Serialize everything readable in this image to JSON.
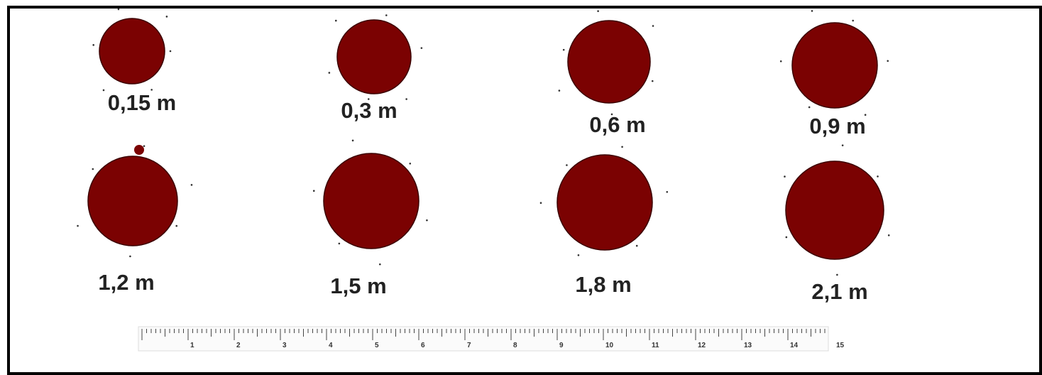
{
  "drops": [
    {
      "label": "0,15 m"
    },
    {
      "label": "0,3 m"
    },
    {
      "label": "0,6 m"
    },
    {
      "label": "0,9 m"
    },
    {
      "label": "1,2 m"
    },
    {
      "label": "1,5 m"
    },
    {
      "label": "1,8 m"
    },
    {
      "label": "2,1 m"
    }
  ],
  "ruler": {
    "labels": [
      "1",
      "2",
      "3",
      "4",
      "5",
      "6",
      "7",
      "8",
      "9",
      "10",
      "11",
      "12",
      "13",
      "14",
      "15"
    ]
  }
}
